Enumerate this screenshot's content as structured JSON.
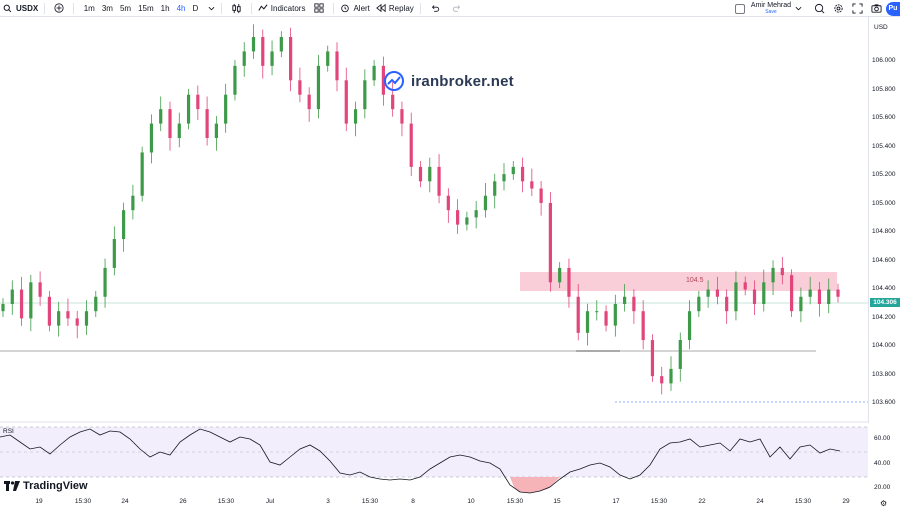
{
  "toolbar": {
    "symbol": "USDX",
    "timeframes": [
      "1m",
      "3m",
      "5m",
      "15m",
      "1h",
      "4h",
      "D"
    ],
    "active_timeframe": "4h",
    "indicators_label": "Indicators",
    "alert_label": "Alert",
    "replay_label": "Replay",
    "user_name": "Amir Mehrad",
    "user_status": "Save",
    "publish_label": "Pu"
  },
  "watermark": {
    "text": "iranbroker.net"
  },
  "price_scale": {
    "currency": "USD",
    "labels": [
      "106.000",
      "105.800",
      "105.600",
      "105.400",
      "105.200",
      "105.000",
      "104.800",
      "104.600",
      "104.400",
      "104.200",
      "104.000",
      "103.800",
      "103.600"
    ],
    "current_price": "104.306"
  },
  "zone": {
    "label": "104.5"
  },
  "rsi": {
    "label": "RSI",
    "scale_labels": [
      "60.00",
      "40.00",
      "20.00"
    ]
  },
  "time_axis": {
    "labels": [
      "19",
      "15:30",
      "24",
      "26",
      "15:30",
      "Jul",
      "3",
      "15:30",
      "8",
      "10",
      "15:30",
      "15",
      "17",
      "15:30",
      "22",
      "24",
      "15:30",
      "29"
    ]
  },
  "branding": {
    "logo_text": "TradingView"
  },
  "colors": {
    "up": "#26a69a",
    "up_candle": "#3d9a48",
    "down_candle": "#e2457a",
    "zone": "#f8c9d4",
    "accent": "#2962ff"
  },
  "chart_data": {
    "type": "candlestick",
    "y_range": [
      103.55,
      106.1
    ],
    "current_price": 104.306,
    "resistance_zone": [
      104.4,
      104.53
    ],
    "support_level": 103.97,
    "series_close": [
      104.25,
      104.35,
      104.15,
      104.4,
      104.3,
      104.1,
      104.2,
      104.15,
      104.1,
      104.2,
      104.3,
      104.5,
      104.7,
      104.9,
      105.0,
      105.3,
      105.5,
      105.6,
      105.4,
      105.5,
      105.7,
      105.6,
      105.4,
      105.5,
      105.7,
      105.9,
      106.0,
      106.1,
      105.9,
      106.0,
      106.1,
      105.8,
      105.7,
      105.6,
      105.9,
      106.0,
      105.8,
      105.5,
      105.6,
      105.8,
      105.9,
      105.7,
      105.6,
      105.5,
      105.2,
      105.1,
      105.2,
      105.0,
      104.9,
      104.8,
      104.85,
      104.9,
      105.0,
      105.1,
      105.15,
      105.2,
      105.1,
      105.05,
      104.95,
      104.4,
      104.5,
      104.3,
      104.05,
      104.2,
      104.2,
      104.1,
      104.25,
      104.3,
      104.2,
      104.0,
      103.75,
      103.7,
      103.8,
      104.0,
      104.2,
      104.3,
      104.35,
      104.3,
      104.2,
      104.4,
      104.35,
      104.25,
      104.4,
      104.5,
      104.45,
      104.2,
      104.3,
      104.35,
      104.25,
      104.35,
      104.3
    ]
  }
}
